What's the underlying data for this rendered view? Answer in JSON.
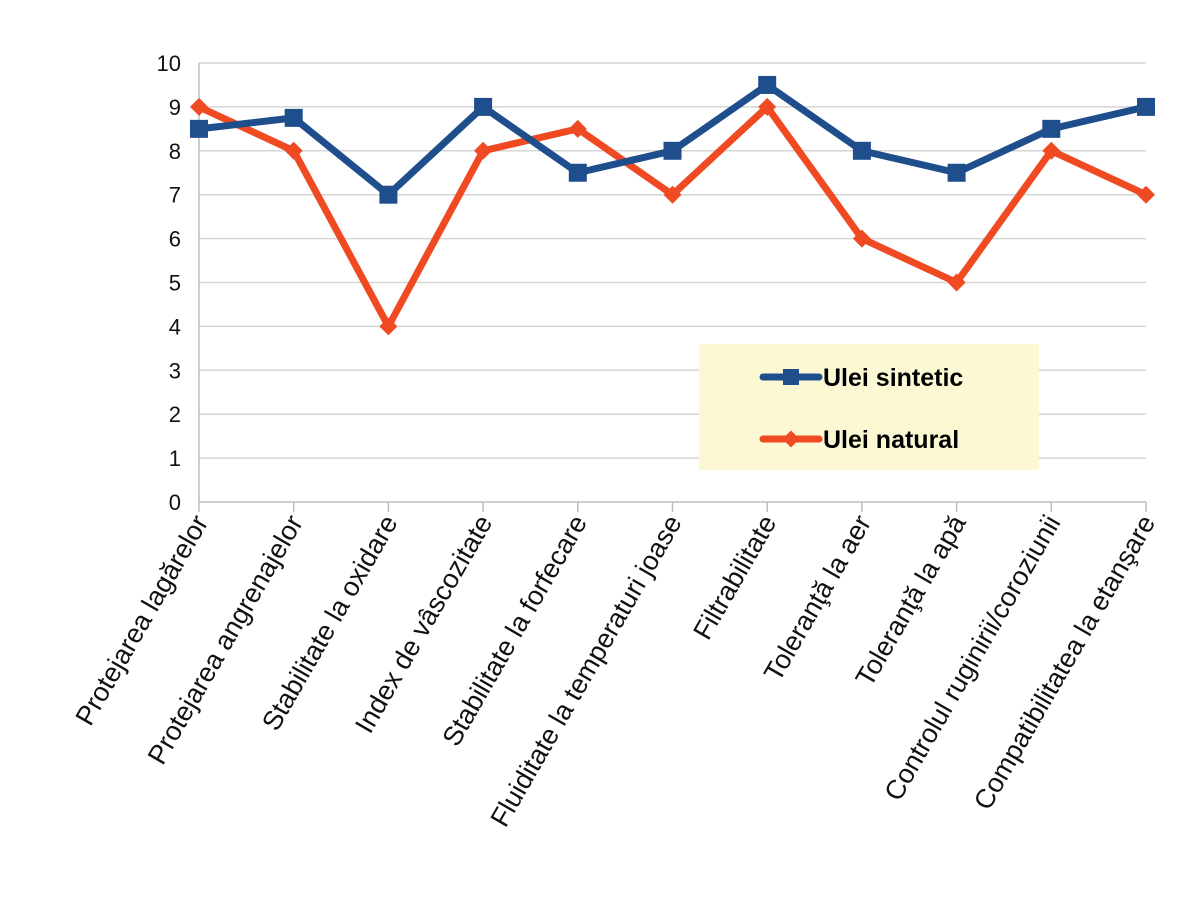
{
  "chart_data": {
    "type": "line",
    "categories": [
      "Protejarea lagărelor",
      "Protejarea angrenajelor",
      "Stabilitate la oxidare",
      "Index de vâscozitate",
      "Stabilitate la forfecare",
      "Fluiditate la temperaturi joase",
      "Filtrabilitate",
      "Toleranţă la aer",
      "Toleranţă la apă",
      "Controlul ruginirii/coroziunii",
      "Compatibilitatea la etanşare"
    ],
    "series": [
      {
        "name": "Ulei sintetic",
        "values": [
          8.5,
          8.75,
          7,
          9,
          7.5,
          8,
          9.5,
          8,
          7.5,
          8.5,
          9
        ],
        "color": "#1f4e8c",
        "marker": "square"
      },
      {
        "name": "Ulei natural",
        "values": [
          9,
          8,
          4,
          8,
          8.5,
          7,
          9,
          6,
          5,
          8,
          7
        ],
        "color": "#f04a23",
        "marker": "diamond"
      }
    ],
    "ylim": [
      0,
      10
    ],
    "yticks": [
      "0",
      "1",
      "2",
      "3",
      "4",
      "5",
      "6",
      "7",
      "8",
      "9",
      "10"
    ],
    "grid": true,
    "legend": {
      "position": "lower-right",
      "background": "#fdf8d4"
    },
    "title": "",
    "xlabel": "",
    "ylabel": ""
  }
}
